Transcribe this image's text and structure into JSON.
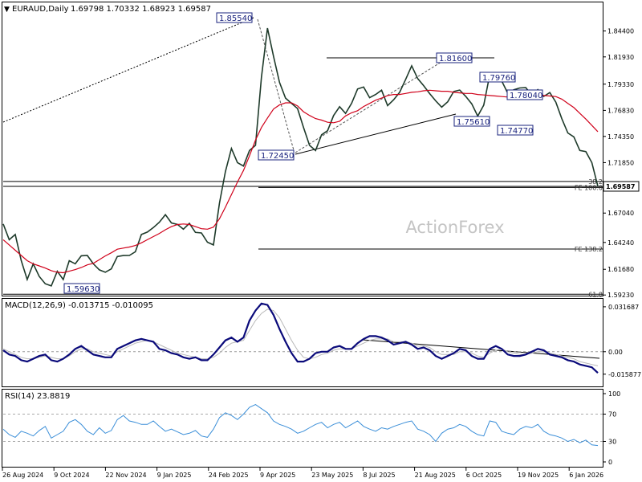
{
  "header": {
    "symbol": "EURAUD,Daily",
    "ohlc": "1.69798 1.70332 1.68923 1.69587"
  },
  "watermark": "ActionForex",
  "chart_data": {
    "type": "line",
    "x_tick_labels": [
      "26 Aug 2024",
      "9 Oct 2024",
      "22 Nov 2024",
      "9 Jan 2025",
      "24 Feb 2025",
      "9 Apr 2025",
      "23 May 2025",
      "8 Jul 2025",
      "21 Aug 2025",
      "6 Oct 2025",
      "19 Nov 2025",
      "6 Jan 2026"
    ],
    "price_panel": {
      "y_ticks": [
        "1.84400",
        "1.81930",
        "1.79330",
        "1.76830",
        "1.74350",
        "1.71850",
        "1.69587",
        "1.67040",
        "1.64240",
        "1.61680",
        "1.59230"
      ],
      "ylim": [
        1.5917,
        1.8697
      ],
      "current_price": 1.69587,
      "current_price_label": "1.69587",
      "callouts": [
        {
          "label": "1.85540",
          "x": "24 Feb 2025",
          "value": 1.8554
        },
        {
          "label": "1.81600",
          "x": "21 Aug 2025",
          "value": 1.816
        },
        {
          "label": "1.79760",
          "x": "6 Oct 2025",
          "value": 1.7976
        },
        {
          "label": "1.78040",
          "x": "6 Oct 2025",
          "value": 1.7804
        },
        {
          "label": "1.75610",
          "x": "6 Oct 2025",
          "value": 1.7561
        },
        {
          "label": "1.74770",
          "x": "19 Nov 2025",
          "value": 1.7477
        },
        {
          "label": "1.72450",
          "x": "9 Apr 2025",
          "value": 1.7245
        },
        {
          "label": "1.59630",
          "x": "9 Oct 2024",
          "value": 1.5963
        }
      ],
      "level_labels": [
        {
          "label": "38.2",
          "value": 1.7005
        },
        {
          "label": "FE 100.0",
          "value": 1.6948
        },
        {
          "label": "FE 138.2",
          "value": 1.6361
        },
        {
          "label": "61.8",
          "value": 1.593
        }
      ],
      "series": [
        {
          "name": "",
          "color": "#1e3a2a",
          "values": [
            1.66,
            1.645,
            1.65,
            1.625,
            1.607,
            1.622,
            1.61,
            1.603,
            1.601,
            1.615,
            1.607,
            1.625,
            1.622,
            1.6297,
            1.63,
            1.622,
            1.6163,
            1.614,
            1.6172,
            1.629,
            1.6299,
            1.63,
            1.6335,
            1.65,
            1.6523,
            1.6566,
            1.6617,
            1.6689,
            1.661,
            1.6596,
            1.655,
            1.6606,
            1.652,
            1.6514,
            1.6426,
            1.64,
            1.68,
            1.71,
            1.732,
            1.7185,
            1.7152,
            1.73,
            1.735,
            1.8,
            1.8467,
            1.82,
            1.795,
            1.78,
            1.775,
            1.77,
            1.7521,
            1.735,
            1.73,
            1.745,
            1.7489,
            1.7634,
            1.7718,
            1.7654,
            1.775,
            1.7887,
            1.7906,
            1.7804,
            1.7835,
            1.7875,
            1.7728,
            1.7784,
            1.7855,
            1.7979,
            1.8108,
            1.7986,
            1.7919,
            1.7843,
            1.7774,
            1.7714,
            1.7765,
            1.7863,
            1.7877,
            1.7817,
            1.7746,
            1.7629,
            1.7733,
            1.8024,
            1.8035,
            1.7963,
            1.7847,
            1.7879,
            1.7897,
            1.79,
            1.7827,
            1.7881,
            1.7816,
            1.7853,
            1.7762,
            1.7603,
            1.7468,
            1.743,
            1.7301,
            1.729,
            1.7185,
            1.6959
          ]
        },
        {
          "name": "",
          "color": "#d0021b",
          "values": [
            1.645,
            1.64,
            1.635,
            1.63,
            1.625,
            1.622,
            1.62,
            1.618,
            1.6155,
            1.614,
            1.6135,
            1.615,
            1.6165,
            1.6185,
            1.621,
            1.6225,
            1.626,
            1.6295,
            1.6325,
            1.636,
            1.637,
            1.638,
            1.6395,
            1.642,
            1.645,
            1.648,
            1.651,
            1.6545,
            1.6575,
            1.6595,
            1.66,
            1.6595,
            1.6575,
            1.6555,
            1.655,
            1.657,
            1.665,
            1.676,
            1.688,
            1.7,
            1.711,
            1.725,
            1.74,
            1.752,
            1.761,
            1.7695,
            1.7735,
            1.7755,
            1.7755,
            1.7725,
            1.767,
            1.7635,
            1.7605,
            1.759,
            1.757,
            1.7565,
            1.758,
            1.763,
            1.766,
            1.768,
            1.772,
            1.775,
            1.778,
            1.78,
            1.7825,
            1.7835,
            1.7835,
            1.7845,
            1.7855,
            1.786,
            1.787,
            1.7875,
            1.787,
            1.7865,
            1.7865,
            1.7855,
            1.785,
            1.7845,
            1.7845,
            1.7835,
            1.783,
            1.7825,
            1.782,
            1.7815,
            1.781,
            1.782,
            1.7825,
            1.7835,
            1.7835,
            1.7825,
            1.7825,
            1.782,
            1.7815,
            1.779,
            1.775,
            1.771,
            1.7655,
            1.76,
            1.754,
            1.748
          ]
        }
      ]
    },
    "macd_panel": {
      "label": "MACD(12,26,9) -0.013715 -0.010095",
      "y_ticks": [
        "0.031687",
        "0.00",
        "-0.015877"
      ],
      "ylim": [
        -0.0245,
        0.0356
      ],
      "series": [
        {
          "name": "",
          "color": "#0a0a7a",
          "values": [
            0.001,
            -0.002,
            -0.003,
            -0.006,
            -0.007,
            -0.005,
            -0.003,
            -0.002,
            -0.006,
            -0.007,
            -0.005,
            -0.002,
            0.002,
            0.004,
            0.001,
            -0.002,
            -0.003,
            -0.004,
            -0.004,
            0.002,
            0.004,
            0.006,
            0.008,
            0.009,
            0.008,
            0.007,
            0.002,
            0.001,
            -0.001,
            -0.002,
            -0.004,
            -0.005,
            -0.004,
            -0.006,
            -0.006,
            -0.002,
            0.003,
            0.008,
            0.01,
            0.007,
            0.01,
            0.022,
            0.029,
            0.034,
            0.033,
            0.026,
            0.016,
            0.007,
            -0.001,
            -0.007,
            -0.007,
            -0.005,
            -0.001,
            0.0,
            0.0,
            0.003,
            0.004,
            0.002,
            0.002,
            0.006,
            0.009,
            0.011,
            0.011,
            0.01,
            0.008,
            0.005,
            0.006,
            0.007,
            0.005,
            0.002,
            0.003,
            0.001,
            -0.003,
            -0.005,
            -0.003,
            -0.001,
            0.002,
            0.001,
            -0.003,
            -0.005,
            -0.005,
            0.002,
            0.004,
            0.002,
            -0.002,
            -0.003,
            -0.003,
            -0.002,
            0.0,
            0.002,
            0.001,
            -0.002,
            -0.003,
            -0.004,
            -0.006,
            -0.007,
            -0.009,
            -0.01,
            -0.011,
            -0.015
          ]
        },
        {
          "name": "",
          "color": "#b8b8b8",
          "values": [
            0.002,
            0.0,
            -0.002,
            -0.004,
            -0.005,
            -0.005,
            -0.004,
            -0.003,
            -0.004,
            -0.005,
            -0.005,
            -0.003,
            0.0,
            0.002,
            0.002,
            0.0,
            -0.001,
            -0.002,
            -0.003,
            0.0,
            0.002,
            0.004,
            0.006,
            0.007,
            0.008,
            0.007,
            0.005,
            0.003,
            0.001,
            -0.001,
            -0.002,
            -0.003,
            -0.004,
            -0.005,
            -0.005,
            -0.004,
            -0.001,
            0.003,
            0.006,
            0.007,
            0.008,
            0.015,
            0.022,
            0.027,
            0.03,
            0.029,
            0.024,
            0.016,
            0.008,
            0.001,
            -0.004,
            -0.005,
            -0.004,
            -0.002,
            -0.001,
            0.001,
            0.002,
            0.002,
            0.002,
            0.004,
            0.006,
            0.008,
            0.009,
            0.009,
            0.009,
            0.007,
            0.007,
            0.007,
            0.006,
            0.004,
            0.004,
            0.003,
            0.0,
            -0.002,
            -0.002,
            -0.002,
            0.0,
            0.0,
            -0.001,
            -0.003,
            -0.004,
            -0.001,
            0.001,
            0.002,
            0.0,
            -0.001,
            -0.002,
            -0.002,
            -0.001,
            0.0,
            0.0,
            -0.001,
            -0.002,
            -0.003,
            -0.004,
            -0.005,
            -0.007,
            -0.008,
            -0.009,
            -0.01
          ]
        }
      ]
    },
    "rsi_panel": {
      "label": "RSI(14) 23.8819",
      "y_ticks": [
        "100",
        "70",
        "30",
        "0"
      ],
      "ylim": [
        0,
        100
      ],
      "series": [
        {
          "name": "",
          "color": "#3a8ed8",
          "values": [
            48,
            40,
            36,
            45,
            42,
            38,
            46,
            52,
            35,
            40,
            45,
            58,
            62,
            55,
            45,
            40,
            50,
            42,
            46,
            62,
            68,
            60,
            58,
            55,
            55,
            60,
            52,
            45,
            48,
            44,
            40,
            42,
            46,
            38,
            36,
            48,
            65,
            72,
            68,
            62,
            70,
            80,
            84,
            78,
            72,
            60,
            55,
            52,
            48,
            42,
            45,
            50,
            55,
            58,
            50,
            55,
            58,
            50,
            55,
            60,
            52,
            48,
            45,
            50,
            48,
            52,
            55,
            58,
            60,
            48,
            45,
            40,
            30,
            42,
            48,
            50,
            55,
            52,
            45,
            40,
            38,
            60,
            58,
            45,
            42,
            40,
            48,
            52,
            50,
            55,
            45,
            40,
            38,
            35,
            30,
            33,
            28,
            32,
            25,
            24
          ]
        }
      ]
    }
  }
}
